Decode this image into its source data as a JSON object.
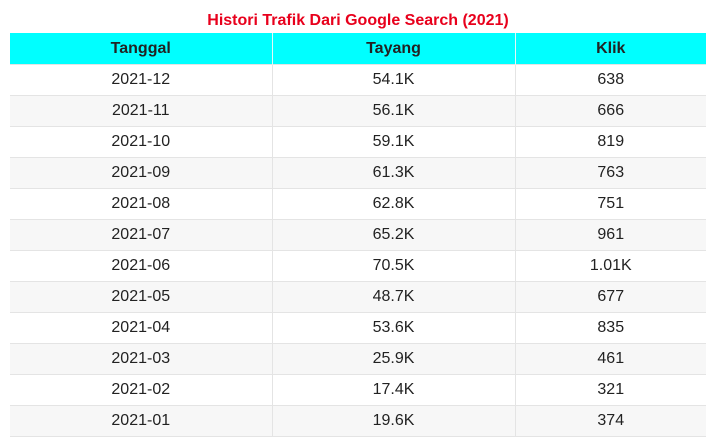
{
  "chart_data": {
    "type": "table",
    "title": "Histori Trafik Dari Google Search (2021)",
    "columns": [
      "Tanggal",
      "Tayang",
      "Klik"
    ],
    "rows": [
      [
        "2021-12",
        "54.1K",
        "638"
      ],
      [
        "2021-11",
        "56.1K",
        "666"
      ],
      [
        "2021-10",
        "59.1K",
        "819"
      ],
      [
        "2021-09",
        "61.3K",
        "763"
      ],
      [
        "2021-08",
        "62.8K",
        "751"
      ],
      [
        "2021-07",
        "65.2K",
        "961"
      ],
      [
        "2021-06",
        "70.5K",
        "1.01K"
      ],
      [
        "2021-05",
        "48.7K",
        "677"
      ],
      [
        "2021-04",
        "53.6K",
        "835"
      ],
      [
        "2021-03",
        "25.9K",
        "461"
      ],
      [
        "2021-02",
        "17.4K",
        "321"
      ],
      [
        "2021-01",
        "19.6K",
        "374"
      ]
    ]
  },
  "colors": {
    "title": "#e8001c",
    "header_background": "#00ffff",
    "row_alt_background": "#f7f7f7",
    "text": "#222222"
  }
}
